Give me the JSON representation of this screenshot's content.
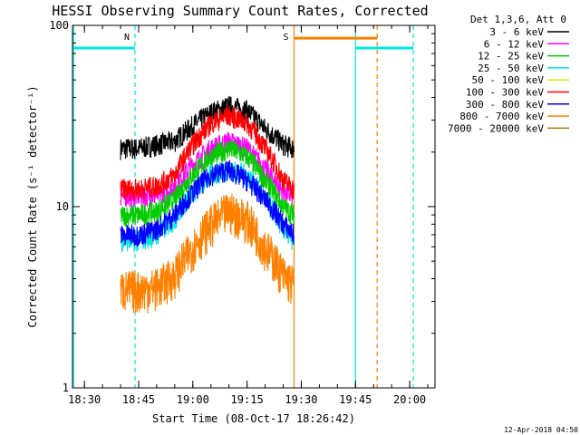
{
  "chart_data": {
    "type": "line",
    "title": "HESSI Observing Summary Count Rates, Corrected",
    "xlabel": "Start Time (08-Oct-17 18:26:42)",
    "ylabel": "Corrected Count Rate (s⁻¹ detector⁻¹)",
    "yscale": "log",
    "ylim": [
      1,
      100
    ],
    "xlim": [
      "18:26:42",
      "20:07:00"
    ],
    "x_ticks": [
      "18:30",
      "18:45",
      "19:00",
      "19:15",
      "19:30",
      "19:45",
      "20:00"
    ],
    "y_ticks": [
      "1",
      "10",
      "100"
    ],
    "legend_title": "Det 1,3,6, Att 0",
    "legend_position": "top-right, outside plot",
    "series": [
      {
        "name": "3 - 6 keV",
        "color": "#000000",
        "t": [
          0,
          5,
          10,
          15,
          20,
          25,
          30,
          35,
          40,
          45,
          48
        ],
        "y": [
          21,
          21,
          22,
          23,
          28,
          33,
          36,
          34,
          27,
          22,
          21
        ]
      },
      {
        "name": "6 - 12 keV",
        "color": "#ff00ff",
        "t": [
          0,
          5,
          10,
          15,
          20,
          25,
          30,
          35,
          40,
          45,
          48
        ],
        "y": [
          11.5,
          11.5,
          11.5,
          13,
          17,
          21,
          23,
          21,
          16,
          12,
          11.5
        ]
      },
      {
        "name": "12 - 25 keV",
        "color": "#00cc00",
        "t": [
          0,
          5,
          10,
          15,
          20,
          25,
          30,
          35,
          40,
          45,
          48
        ],
        "y": [
          9,
          9,
          9.5,
          11,
          15,
          19,
          21,
          19,
          14,
          10,
          9
        ]
      },
      {
        "name": "25 - 50 keV",
        "color": "#00e5e5",
        "t": [
          0,
          5,
          10,
          15,
          20,
          25,
          30,
          35,
          40,
          45,
          48
        ],
        "y": [
          6.5,
          6.5,
          7,
          8.5,
          12,
          15,
          16,
          15,
          11,
          7.5,
          6.5
        ]
      },
      {
        "name": "50 - 100 keV",
        "color": "#e5e500",
        "t": [
          0,
          48
        ],
        "y": [
          null,
          null
        ]
      },
      {
        "name": "100 - 300 keV",
        "color": "#ff0000",
        "t": [
          0,
          5,
          10,
          15,
          20,
          25,
          30,
          35,
          40,
          45,
          48
        ],
        "y": [
          12.5,
          12.5,
          13,
          15,
          22,
          29,
          32,
          29,
          21,
          14,
          12.5
        ]
      },
      {
        "name": "300 - 800 keV",
        "color": "#0000ff",
        "t": [
          0,
          5,
          10,
          15,
          20,
          25,
          30,
          35,
          40,
          45,
          48
        ],
        "y": [
          7,
          7,
          7.5,
          9,
          12,
          15,
          16,
          14,
          11,
          8,
          7
        ]
      },
      {
        "name": "800 - 7000 keV",
        "color": "#ff8000",
        "t": [
          0,
          5,
          10,
          15,
          20,
          25,
          30,
          35,
          40,
          45,
          48
        ],
        "y": [
          3.5,
          3.5,
          3.6,
          4.2,
          6,
          8,
          9.5,
          8.5,
          6,
          4.2,
          3.7
        ]
      },
      {
        "name": "7000 - 20000 keV",
        "color": "#b07800",
        "t": [
          0,
          48
        ],
        "y": [
          null,
          null
        ]
      }
    ],
    "data_interval": {
      "start": "18:40",
      "end": "19:28"
    },
    "vertical_markers": [
      {
        "time": "18:27",
        "color": "#00e5e5",
        "style": "solid"
      },
      {
        "time": "18:44",
        "color": "#00e5e5",
        "style": "dashed",
        "label": "N"
      },
      {
        "time": "19:28",
        "color": "#ff8000",
        "style": "solid",
        "label": "S"
      },
      {
        "time": "19:45",
        "color": "#00e5e5",
        "style": "solid"
      },
      {
        "time": "19:51",
        "color": "#ff8000",
        "style": "dashed"
      },
      {
        "time": "20:01",
        "color": "#00e5e5",
        "style": "dashed"
      }
    ],
    "horizontal_markers": [
      {
        "from": "18:27",
        "to": "18:44",
        "y": 75,
        "color": "#00e5e5"
      },
      {
        "from": "19:28",
        "to": "19:51",
        "y": 85,
        "color": "#ff8000"
      },
      {
        "from": "19:45",
        "to": "20:01",
        "y": 75,
        "color": "#00e5e5"
      }
    ],
    "footer": "12-Apr-2018 04:50"
  }
}
